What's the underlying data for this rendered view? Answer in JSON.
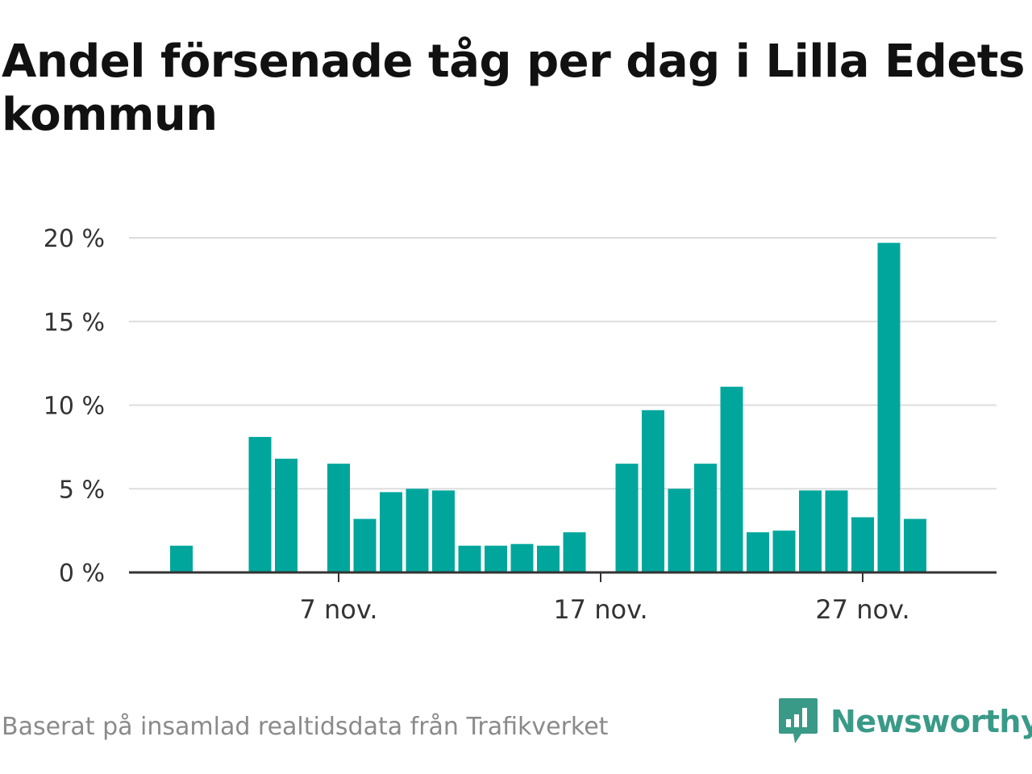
{
  "title": "Andel försenade tåg per dag i Lilla Edets kommun",
  "source": "Baserat på insamlad realtidsdata från Trafikverket",
  "brand": {
    "name": "Newsworthy",
    "icon": "newsworthy-logo-icon",
    "color": "#3a9a88"
  },
  "colors": {
    "bar": "#00a69c",
    "grid": "#dddddd",
    "axis": "#333333"
  },
  "chart_data": {
    "type": "bar",
    "title": "Andel försenade tåg per dag i Lilla Edets kommun",
    "xlabel": "",
    "ylabel": "",
    "ylim": [
      0,
      20
    ],
    "y_ticks": [
      0,
      5,
      10,
      15,
      20
    ],
    "y_tick_labels": [
      "0 %",
      "5 %",
      "10 %",
      "15 %",
      "20 %"
    ],
    "x_tick_labels": [
      "7 nov.",
      "17 nov.",
      "27 nov."
    ],
    "x_tick_dates": [
      "2023-11-07",
      "2023-11-17",
      "2023-11-27"
    ],
    "grid": true,
    "x": [
      "2023-11-01",
      "2023-11-02",
      "2023-11-03",
      "2023-11-04",
      "2023-11-05",
      "2023-11-06",
      "2023-11-07",
      "2023-11-08",
      "2023-11-09",
      "2023-11-10",
      "2023-11-11",
      "2023-11-12",
      "2023-11-13",
      "2023-11-14",
      "2023-11-15",
      "2023-11-16",
      "2023-11-17",
      "2023-11-18",
      "2023-11-19",
      "2023-11-20",
      "2023-11-21",
      "2023-11-22",
      "2023-11-23",
      "2023-11-24",
      "2023-11-25",
      "2023-11-26",
      "2023-11-27",
      "2023-11-28",
      "2023-11-29",
      "2023-11-30"
    ],
    "values": [
      1.6,
      null,
      null,
      8.1,
      6.8,
      null,
      6.5,
      3.2,
      4.8,
      5.0,
      4.9,
      1.6,
      1.6,
      1.7,
      1.6,
      2.4,
      null,
      6.5,
      9.7,
      5.0,
      6.5,
      11.1,
      2.4,
      2.5,
      4.9,
      4.9,
      3.3,
      19.7,
      3.2,
      null
    ]
  }
}
